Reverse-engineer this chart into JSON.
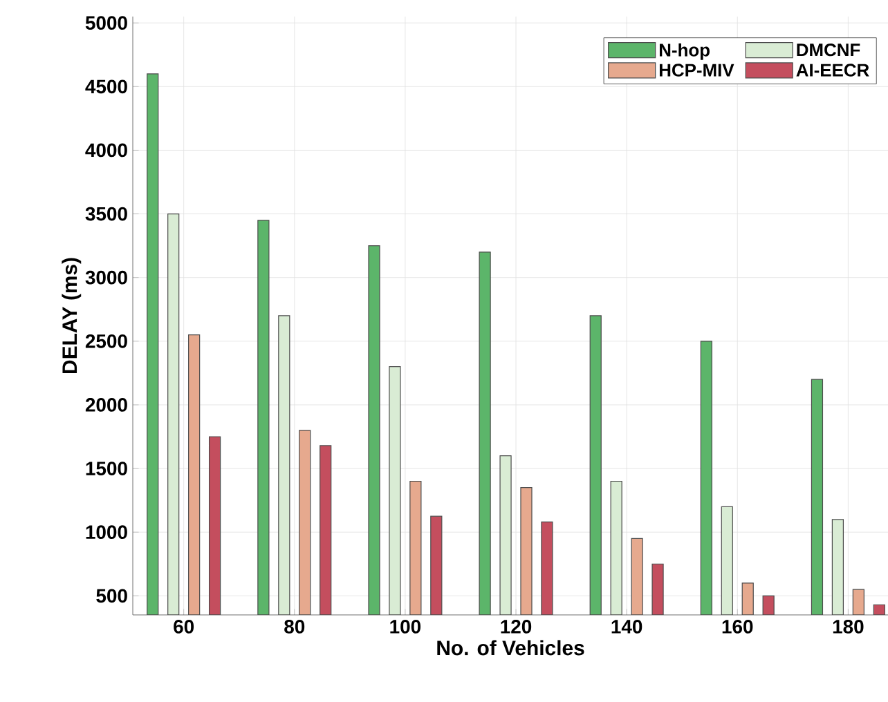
{
  "chart_data": {
    "type": "bar",
    "xlabel": "No. of Vehicles",
    "ylabel": "DELAY (ms)",
    "categories": [
      "60",
      "80",
      "100",
      "120",
      "140",
      "160",
      "180"
    ],
    "series": [
      {
        "name": "N-hop",
        "color": "#5cb56a",
        "values": [
          4600,
          3450,
          3250,
          3200,
          2700,
          2500,
          2200
        ]
      },
      {
        "name": "DMCNF",
        "color": "#d9ecd4",
        "values": [
          3500,
          2700,
          2300,
          1600,
          1400,
          1200,
          1100
        ]
      },
      {
        "name": "HCP-MIV",
        "color": "#e6a98e",
        "values": [
          2550,
          1800,
          1400,
          1350,
          950,
          600,
          550
        ]
      },
      {
        "name": "AI-EECR",
        "color": "#c44e5e",
        "values": [
          1750,
          1680,
          1125,
          1080,
          750,
          500,
          430
        ]
      }
    ],
    "ylim": [
      350,
      5050
    ],
    "yticks": [
      500,
      1000,
      1500,
      2000,
      2500,
      3000,
      3500,
      4000,
      4500,
      5000
    ],
    "grid": true,
    "legend": "top right"
  }
}
